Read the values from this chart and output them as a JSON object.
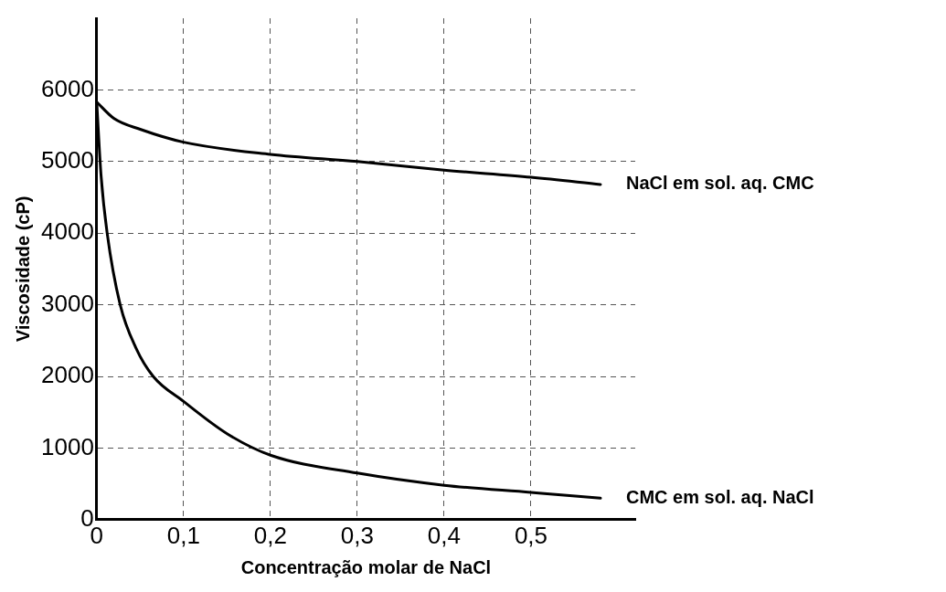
{
  "chart_data": {
    "type": "line",
    "xlabel": "Concentração molar de NaCl",
    "ylabel": "Viscosidade (cP)",
    "xlim": [
      0,
      0.62
    ],
    "ylim": [
      0,
      7000
    ],
    "xticks": [
      0,
      {
        "value": 0.1,
        "label": "0,1"
      },
      {
        "value": 0.2,
        "label": "0,2"
      },
      {
        "value": 0.3,
        "label": "0,3"
      },
      {
        "value": 0.4,
        "label": "0,4"
      },
      {
        "value": 0.5,
        "label": "0,5"
      }
    ],
    "yticks": [
      0,
      1000,
      2000,
      3000,
      4000,
      5000,
      6000
    ],
    "grid": true,
    "legend": false,
    "marker": "none",
    "line_style": "solid",
    "series": [
      {
        "name": "NaCl em sol. aq. CMC",
        "color": "#000000",
        "x": [
          0,
          0.02,
          0.05,
          0.1,
          0.2,
          0.3,
          0.4,
          0.5,
          0.58
        ],
        "values": [
          5830,
          5600,
          5450,
          5270,
          5100,
          5000,
          4880,
          4780,
          4680
        ]
      },
      {
        "name": "CMC em sol. aq. NaCl",
        "color": "#000000",
        "x": [
          0,
          0.005,
          0.012,
          0.027,
          0.045,
          0.065,
          0.1,
          0.15,
          0.2,
          0.3,
          0.4,
          0.5,
          0.58
        ],
        "values": [
          5830,
          4800,
          4000,
          3000,
          2400,
          2000,
          1650,
          1200,
          900,
          650,
          480,
          380,
          300
        ]
      }
    ]
  }
}
